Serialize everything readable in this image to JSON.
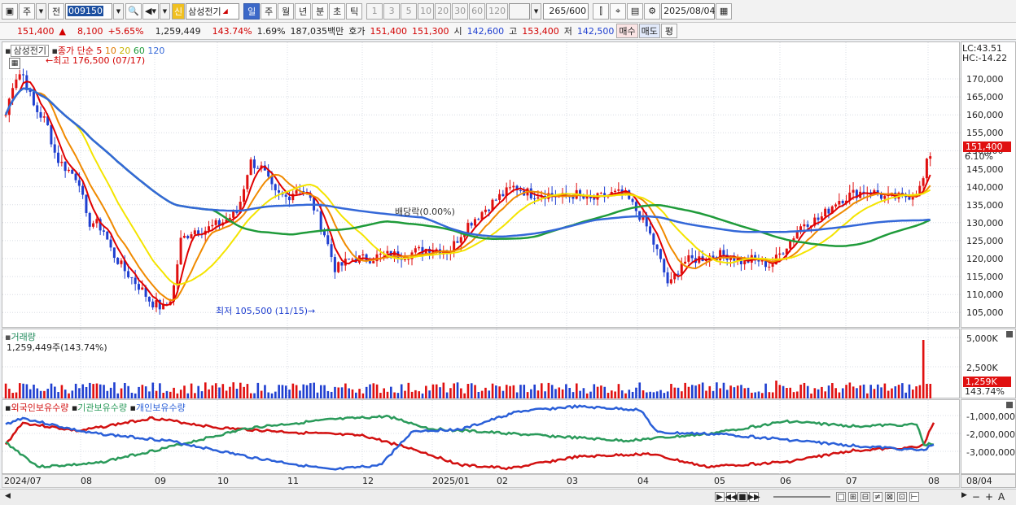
{
  "toolbar": {
    "market": "주",
    "prev_label": "전",
    "code": "009150",
    "stock_name": "삼성전기",
    "new_badge": "신",
    "periods": [
      "일",
      "주",
      "월",
      "년",
      "분",
      "초",
      "틱"
    ],
    "active_period": "일",
    "intervals": [
      "1",
      "3",
      "5",
      "10",
      "20",
      "30",
      "60",
      "120"
    ],
    "count": "265",
    "count_total": "/600",
    "date": "2025/08/04"
  },
  "quote": {
    "price": "151,400",
    "change": "8,100",
    "change_pct": "+5.65%",
    "volume": "1,259,449",
    "volume_ratio": "143.74%",
    "turnover": "1.69%",
    "amount": "187,035백만",
    "hoga_label": "호가",
    "ask": "151,400",
    "bid": "151,300",
    "open_label": "시",
    "open": "142,600",
    "high_label": "고",
    "high": "153,400",
    "low_label": "저",
    "low": "142,500",
    "buy_label": "매수",
    "sell_label": "매도",
    "avg_label": "평"
  },
  "price_pane": {
    "title": "삼성전기",
    "ma_label": "종가 단순",
    "ma_periods": [
      "5",
      "10",
      "20",
      "60",
      "120"
    ],
    "ma_colors": [
      "#e00000",
      "#f08a00",
      "#f4e400",
      "#1f9b3a",
      "#3468d8"
    ],
    "high_note": "최고 176,500 (07/17)",
    "low_note": "최저 105,500 (11/15)",
    "dividend_note": "배당락(0.00%)",
    "lc": "LC:43.51",
    "hc": "HC:-14.22",
    "price_tag": "151,400",
    "pct_tag": "6.10%",
    "ticks": [
      "170,000",
      "165,000",
      "160,000",
      "155,000",
      "150,000",
      "145,000",
      "140,000",
      "135,000",
      "130,000",
      "125,000",
      "120,000",
      "115,000",
      "110,000",
      "105,000"
    ]
  },
  "volume_pane": {
    "title": "거래량",
    "value": "1,259,449주(143.74%)",
    "ticks": [
      "5,000K",
      "2,500K"
    ],
    "tag": "1,259K",
    "tag_pct": "143.74%"
  },
  "holdings_pane": {
    "labels": [
      "외국인보유수량",
      "기관보유수량",
      "개인보유수량"
    ],
    "colors": [
      "#d21010",
      "#2a9a5a",
      "#2a5fd8"
    ],
    "ticks": [
      "-1,000,000",
      "-2,000,000",
      "-3,000,000"
    ]
  },
  "x_axis": {
    "labels": [
      "2024/07",
      "08",
      "09",
      "10",
      "11",
      "12",
      "2025/01",
      "02",
      "03",
      "04",
      "05",
      "06",
      "07",
      "08"
    ],
    "end_label": "08/04"
  },
  "status_bar": {
    "minus": "−",
    "plus": "+",
    "auto": "A"
  },
  "chart_data": {
    "type": "candlestick",
    "ylim": [
      103000,
      176500
    ],
    "high": 176500,
    "low": 105500,
    "last": 151400
  }
}
